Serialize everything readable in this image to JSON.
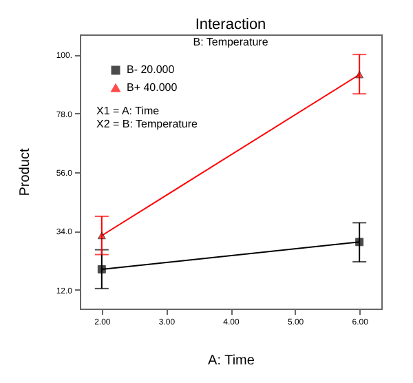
{
  "chart_data": {
    "type": "line",
    "title": "Interaction",
    "subtitle": "B: Temperature",
    "xlabel": "A: Time",
    "ylabel": "Product",
    "x": [
      2,
      6
    ],
    "series": [
      {
        "name": "B- 20.000",
        "color": "#000000",
        "marker": "square",
        "values": [
          19.7,
          29.9
        ],
        "errors": [
          [
            12.5,
            27
          ],
          [
            22.5,
            37.1
          ]
        ]
      },
      {
        "name": "B+ 40.000",
        "color": "#ff0000",
        "marker": "triangle",
        "values": [
          32.3,
          92.5
        ],
        "errors": [
          [
            25.2,
            39.5
          ],
          [
            85.3,
            100
          ]
        ]
      }
    ],
    "annotations": [
      "X1 = A: Time",
      "X2 = B: Temperature"
    ],
    "xlim": [
      1.66,
      6.34
    ],
    "xticks": [
      {
        "value": 2,
        "label": "2.00"
      },
      {
        "value": 3,
        "label": "3.00"
      },
      {
        "value": 4,
        "label": "4.00"
      },
      {
        "value": 5,
        "label": "5.00"
      },
      {
        "value": 6,
        "label": "6.00"
      }
    ],
    "ylim": [
      5,
      107.5
    ],
    "yticks": [
      {
        "value": 12,
        "label": "12.0"
      },
      {
        "value": 34,
        "label": "34.0"
      },
      {
        "value": 56,
        "label": "56.0"
      },
      {
        "value": 78,
        "label": "78.0"
      },
      {
        "value": 100,
        "label": "100."
      }
    ],
    "legend": "top left",
    "grid": false
  }
}
